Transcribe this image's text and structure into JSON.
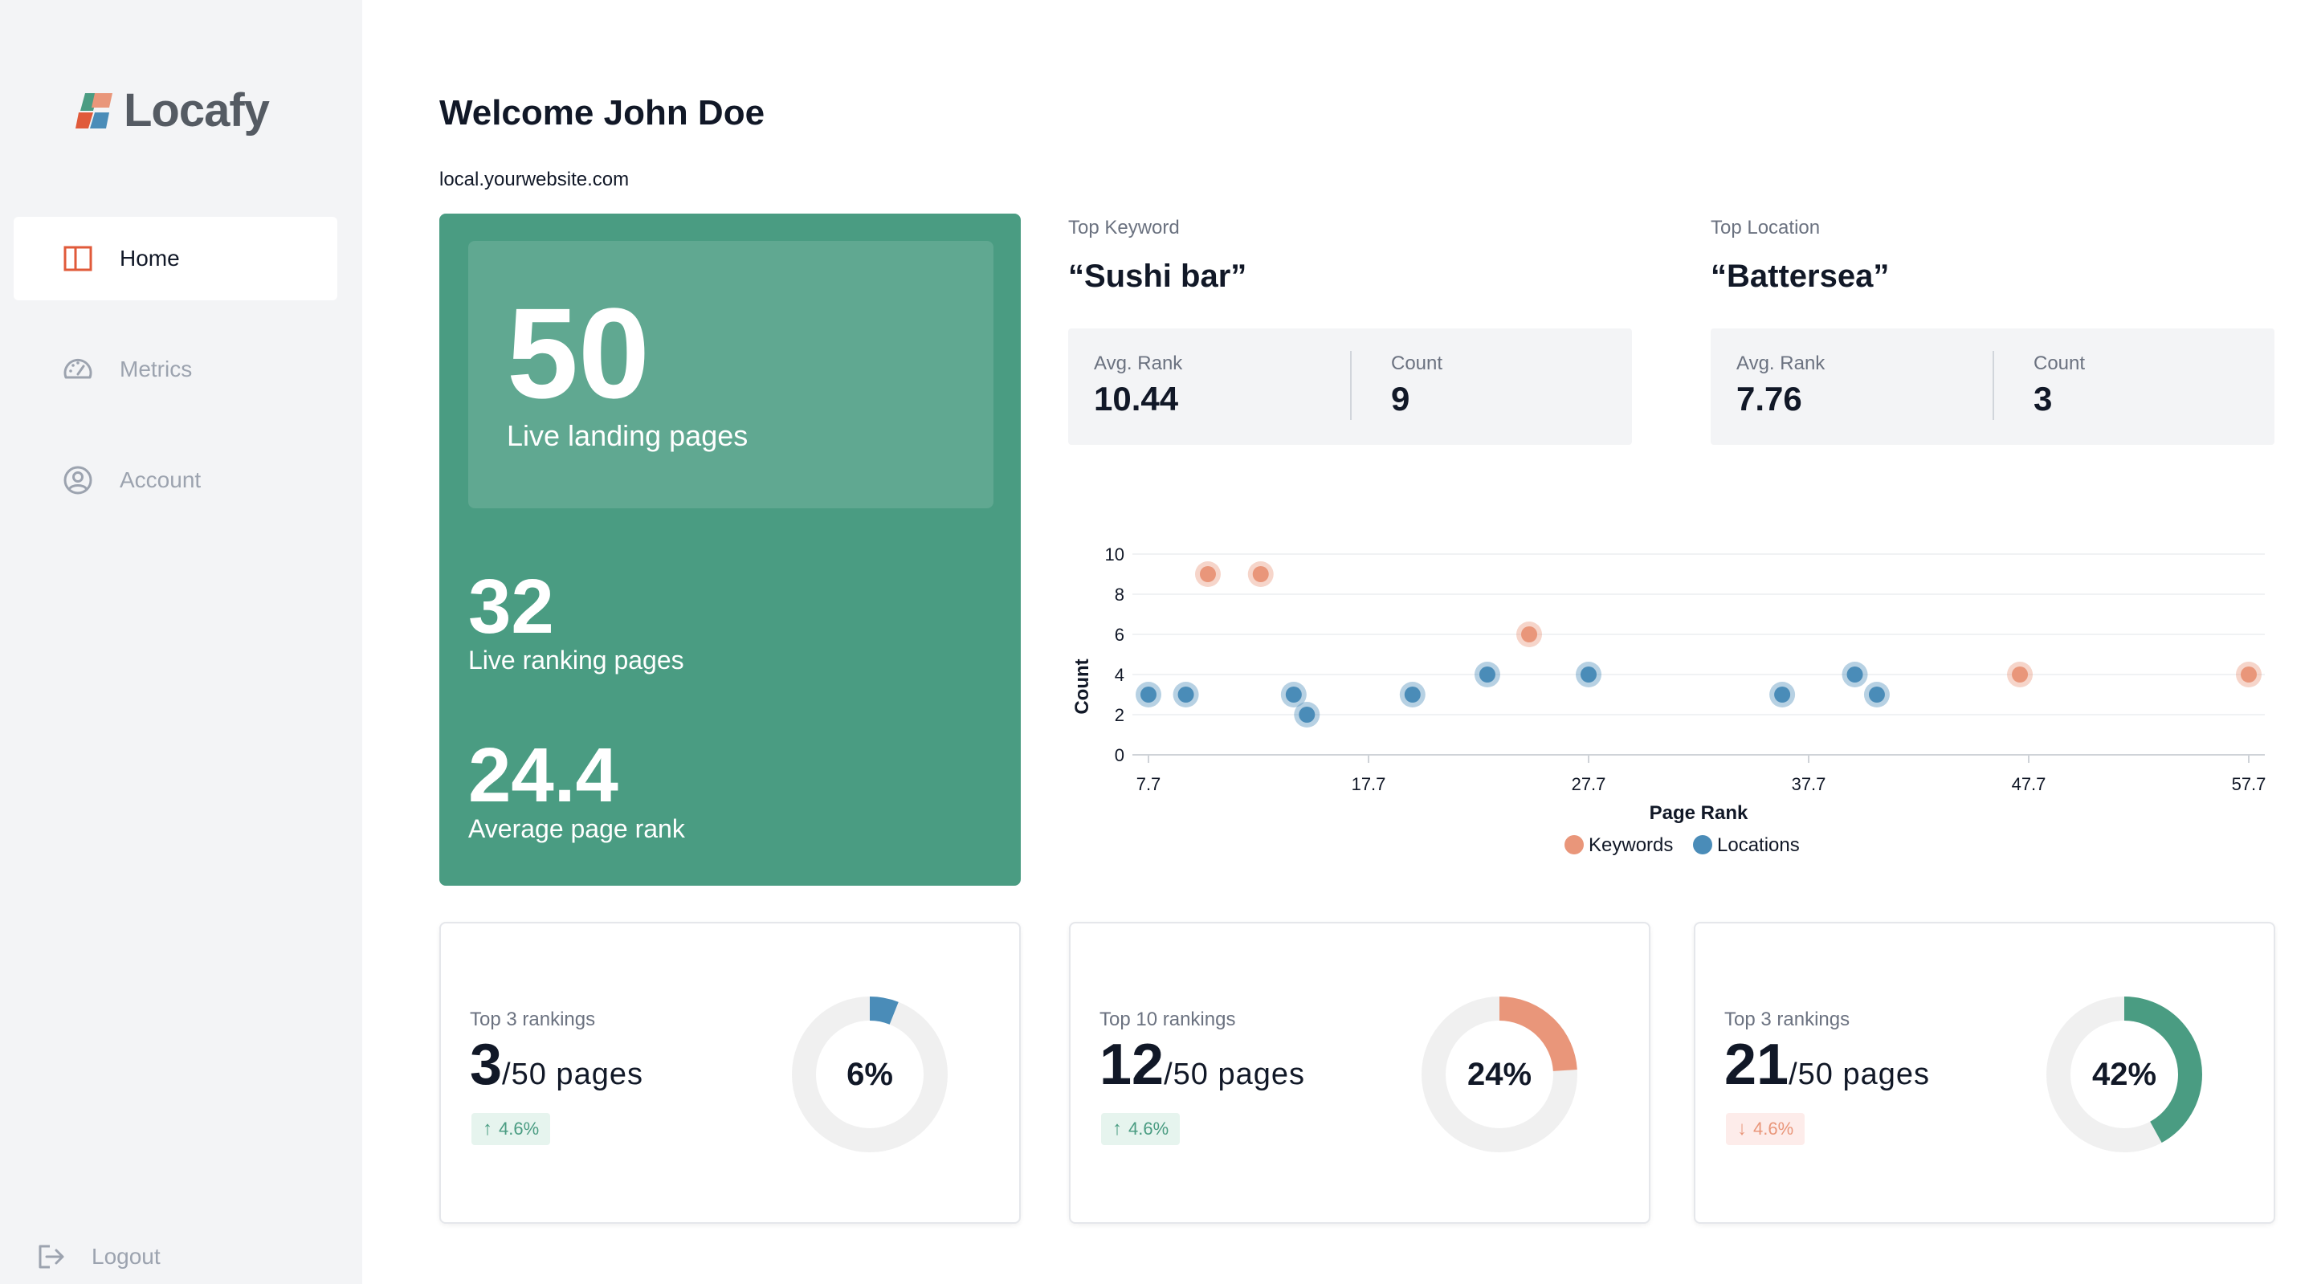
{
  "brand": {
    "name": "Locafy"
  },
  "sidebar": {
    "items": [
      {
        "label": "Home",
        "icon": "layout-icon",
        "active": true
      },
      {
        "label": "Metrics",
        "icon": "gauge-icon",
        "active": false
      },
      {
        "label": "Account",
        "icon": "user-circle-icon",
        "active": false
      }
    ],
    "logout_label": "Logout"
  },
  "header": {
    "title": "Welcome John Doe",
    "site": "local.yourwebsite.com"
  },
  "hero": {
    "primary_value": "50",
    "primary_label": "Live landing pages",
    "stats": [
      {
        "value": "32",
        "label": "Live ranking pages"
      },
      {
        "value": "24.4",
        "label": "Average page rank"
      }
    ]
  },
  "top_keyword": {
    "label": "Top Keyword",
    "value": "“Sushi bar”",
    "avg_rank_label": "Avg. Rank",
    "avg_rank": "10.44",
    "count_label": "Count",
    "count": "9"
  },
  "top_location": {
    "label": "Top Location",
    "value": "“Battersea”",
    "avg_rank_label": "Avg. Rank",
    "avg_rank": "7.76",
    "count_label": "Count",
    "count": "3"
  },
  "chart_data": {
    "type": "scatter",
    "xlabel": "Page Rank",
    "ylabel": "Count",
    "x_ticks": [
      "7.7",
      "17.7",
      "27.7",
      "37.7",
      "47.7",
      "57.7"
    ],
    "y_ticks": [
      "0",
      "2",
      "4",
      "6",
      "8",
      "10"
    ],
    "xlim": [
      7.7,
      57.7
    ],
    "ylim": [
      0,
      10
    ],
    "grid": true,
    "legend_position": "bottom",
    "series": [
      {
        "name": "Keywords",
        "color": "#e9967a",
        "points": [
          {
            "x": 10.4,
            "y": 9
          },
          {
            "x": 12.8,
            "y": 9
          },
          {
            "x": 25.0,
            "y": 6
          },
          {
            "x": 47.3,
            "y": 4
          },
          {
            "x": 57.7,
            "y": 4
          }
        ]
      },
      {
        "name": "Locations",
        "color": "#4a8cb8",
        "points": [
          {
            "x": 7.7,
            "y": 3
          },
          {
            "x": 9.4,
            "y": 3
          },
          {
            "x": 14.3,
            "y": 3
          },
          {
            "x": 14.9,
            "y": 2
          },
          {
            "x": 19.7,
            "y": 3
          },
          {
            "x": 23.1,
            "y": 4
          },
          {
            "x": 27.7,
            "y": 4
          },
          {
            "x": 36.5,
            "y": 3
          },
          {
            "x": 39.8,
            "y": 4
          },
          {
            "x": 40.8,
            "y": 3
          }
        ]
      }
    ]
  },
  "cards": [
    {
      "label": "Top 3 rankings",
      "value": "3",
      "suffix": "/50 pages",
      "change": "4.6%",
      "direction": "up",
      "arrow": "↑",
      "percent_text": "6%",
      "percent": 0.06,
      "color": "#4a8cb8"
    },
    {
      "label": "Top 10 rankings",
      "value": "12",
      "suffix": "/50 pages",
      "change": "4.6%",
      "direction": "up",
      "arrow": "↑",
      "percent_text": "24%",
      "percent": 0.24,
      "color": "#e9967a"
    },
    {
      "label": "Top 3 rankings",
      "value": "21",
      "suffix": "/50 pages",
      "change": "4.6%",
      "direction": "down",
      "arrow": "↓",
      "percent_text": "42%",
      "percent": 0.42,
      "color": "#4a9c82"
    }
  ]
}
